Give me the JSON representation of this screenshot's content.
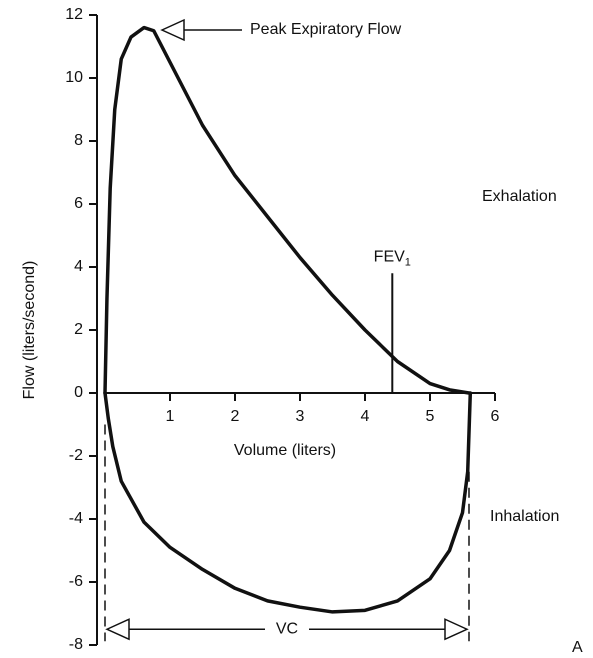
{
  "chart_data": {
    "type": "line",
    "x_label": "Volume (liters)",
    "y_label": "Flow (liters/second)",
    "xlim": [
      0,
      6
    ],
    "xticks": [
      1,
      2,
      3,
      4,
      5,
      6
    ],
    "ylim": [
      -8,
      12
    ],
    "yticks": [
      -8,
      -6,
      -4,
      -2,
      0,
      2,
      4,
      6,
      8,
      10,
      12
    ],
    "color": "#111111",
    "series": [
      {
        "name": "Exhalation",
        "color": "#111111",
        "x": [
          0,
          0.03,
          0.08,
          0.15,
          0.25,
          0.4,
          0.6,
          0.75,
          1.0,
          1.5,
          2.0,
          2.5,
          3.0,
          3.5,
          4.0,
          4.5,
          5.0,
          5.3,
          5.6
        ],
        "values": [
          0,
          3,
          6.5,
          9,
          10.6,
          11.3,
          11.6,
          11.5,
          10.5,
          8.5,
          6.9,
          5.6,
          4.3,
          3.1,
          2.0,
          1.0,
          0.3,
          0.1,
          0
        ]
      },
      {
        "name": "Inhalation",
        "color": "#111111",
        "x": [
          0,
          0.05,
          0.12,
          0.25,
          0.6,
          1.0,
          1.5,
          2.0,
          2.5,
          3.0,
          3.5,
          4.0,
          4.5,
          5.0,
          5.3,
          5.5,
          5.58,
          5.62
        ],
        "values": [
          0,
          -0.8,
          -1.7,
          -2.8,
          -4.1,
          -4.9,
          -5.6,
          -6.2,
          -6.6,
          -6.8,
          -6.95,
          -6.9,
          -6.6,
          -5.9,
          -5.0,
          -3.8,
          -2.5,
          0
        ]
      }
    ],
    "peak_annotation": "Peak Expiratory Flow",
    "fev1": {
      "label": "FEV",
      "subscript": "1",
      "x": 4.42,
      "top": 3.8
    },
    "vc": {
      "label": "VC",
      "from": 0,
      "to": 5.6,
      "level": -7.5
    },
    "panel_label": "A"
  }
}
